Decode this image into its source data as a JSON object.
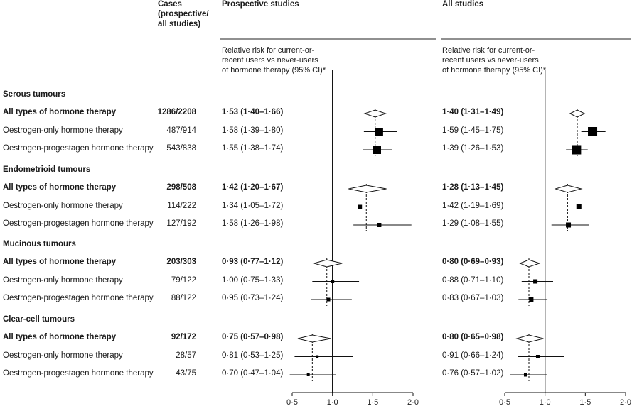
{
  "headers": {
    "cases": "Cases\n(prospective/\nall studies)",
    "prospective": "Prospective studies",
    "all": "All studies",
    "rr_label": "Relative risk for current-or-\nrecent users vs never-users\nof hormone therapy (95% CI)*"
  },
  "chart_data": {
    "type": "forest",
    "panels": [
      "Prospective studies",
      "All studies"
    ],
    "xlim": [
      0.5,
      2.0
    ],
    "ticks": [
      0.5,
      1.0,
      1.5,
      2.0
    ],
    "tick_labels": [
      "0·5",
      "1·0",
      "1·5",
      "2·0"
    ],
    "reference_line": 1.0,
    "sections": [
      {
        "title": "Serous tumours",
        "rows": [
          {
            "label": "All types of hormone therapy",
            "bold": true,
            "cases": "1286/2208",
            "prosp": {
              "text": "1·53 (1·40–1·66)",
              "rr": 1.53,
              "lo": 1.4,
              "hi": 1.66,
              "shape": "diamond"
            },
            "all": {
              "text": "1·40 (1·31–1·49)",
              "rr": 1.4,
              "lo": 1.31,
              "hi": 1.49,
              "shape": "diamond"
            }
          },
          {
            "label": "Oestrogen-only hormone therapy",
            "bold": false,
            "cases": "487/914",
            "prosp": {
              "text": "1·58 (1·39–1·80)",
              "rr": 1.58,
              "lo": 1.39,
              "hi": 1.8,
              "shape": "square",
              "size": 11
            },
            "all": {
              "text": "1·59 (1·45–1·75)",
              "rr": 1.59,
              "lo": 1.45,
              "hi": 1.75,
              "shape": "square",
              "size": 13
            }
          },
          {
            "label": "Oestrogen-progestagen hormone therapy",
            "bold": false,
            "cases": "543/838",
            "prosp": {
              "text": "1·55 (1·38–1·74)",
              "rr": 1.55,
              "lo": 1.38,
              "hi": 1.74,
              "shape": "square",
              "size": 12
            },
            "all": {
              "text": "1·39 (1·26–1·53)",
              "rr": 1.39,
              "lo": 1.26,
              "hi": 1.53,
              "shape": "square",
              "size": 13
            }
          }
        ]
      },
      {
        "title": "Endometrioid tumours",
        "rows": [
          {
            "label": "All types of hormone therapy",
            "bold": true,
            "cases": "298/508",
            "prosp": {
              "text": "1·42 (1·20–1·67)",
              "rr": 1.42,
              "lo": 1.2,
              "hi": 1.67,
              "shape": "diamond"
            },
            "all": {
              "text": "1·28 (1·13–1·45)",
              "rr": 1.28,
              "lo": 1.13,
              "hi": 1.45,
              "shape": "diamond"
            }
          },
          {
            "label": "Oestrogen-only hormone therapy",
            "bold": false,
            "cases": "114/222",
            "prosp": {
              "text": "1·34 (1·05–1·72)",
              "rr": 1.34,
              "lo": 1.05,
              "hi": 1.72,
              "shape": "square",
              "size": 6
            },
            "all": {
              "text": "1·42 (1·19–1·69)",
              "rr": 1.42,
              "lo": 1.19,
              "hi": 1.69,
              "shape": "square",
              "size": 7
            }
          },
          {
            "label": "Oestrogen-progestagen hormone therapy",
            "bold": false,
            "cases": "127/192",
            "prosp": {
              "text": "1·58 (1·26–1·98)",
              "rr": 1.58,
              "lo": 1.26,
              "hi": 1.98,
              "shape": "square",
              "size": 6
            },
            "all": {
              "text": "1·29 (1·08–1·55)",
              "rr": 1.29,
              "lo": 1.08,
              "hi": 1.55,
              "shape": "square",
              "size": 7
            }
          }
        ]
      },
      {
        "title": "Mucinous tumours",
        "rows": [
          {
            "label": "All types of hormone therapy",
            "bold": true,
            "cases": "203/303",
            "prosp": {
              "text": "0·93 (0·77–1·12)",
              "rr": 0.93,
              "lo": 0.77,
              "hi": 1.12,
              "shape": "diamond"
            },
            "all": {
              "text": "0·80 (0·69–0·93)",
              "rr": 0.8,
              "lo": 0.69,
              "hi": 0.93,
              "shape": "diamond"
            }
          },
          {
            "label": "Oestrogen-only hormone therapy",
            "bold": false,
            "cases": "79/122",
            "prosp": {
              "text": "1·00 (0·75–1·33)",
              "rr": 1.0,
              "lo": 0.75,
              "hi": 1.33,
              "shape": "square",
              "size": 5
            },
            "all": {
              "text": "0·88 (0·71–1·10)",
              "rr": 0.88,
              "lo": 0.71,
              "hi": 1.1,
              "shape": "square",
              "size": 6
            }
          },
          {
            "label": "Oestrogen-progestagen hormone therapy",
            "bold": false,
            "cases": "88/122",
            "prosp": {
              "text": "0·95 (0·73–1·24)",
              "rr": 0.95,
              "lo": 0.73,
              "hi": 1.24,
              "shape": "square",
              "size": 5
            },
            "all": {
              "text": "0·83 (0·67–1·03)",
              "rr": 0.83,
              "lo": 0.67,
              "hi": 1.03,
              "shape": "square",
              "size": 6
            }
          }
        ]
      },
      {
        "title": "Clear-cell tumours",
        "rows": [
          {
            "label": "All types of hormone therapy",
            "bold": true,
            "cases": "92/172",
            "prosp": {
              "text": "0·75 (0·57–0·98)",
              "rr": 0.75,
              "lo": 0.57,
              "hi": 0.98,
              "shape": "diamond"
            },
            "all": {
              "text": "0·80 (0·65–0·98)",
              "rr": 0.8,
              "lo": 0.65,
              "hi": 0.98,
              "shape": "diamond"
            }
          },
          {
            "label": "Oestrogen-only hormone therapy",
            "bold": false,
            "cases": "28/57",
            "prosp": {
              "text": "0·81 (0·53–1·25)",
              "rr": 0.81,
              "lo": 0.53,
              "hi": 1.25,
              "shape": "square",
              "size": 4
            },
            "all": {
              "text": "0·91 (0·66–1·24)",
              "rr": 0.91,
              "lo": 0.66,
              "hi": 1.24,
              "shape": "square",
              "size": 5
            }
          },
          {
            "label": "Oestrogen-progestagen hormone therapy",
            "bold": false,
            "cases": "43/75",
            "prosp": {
              "text": "0·70 (0·47–1·04)",
              "rr": 0.7,
              "lo": 0.47,
              "hi": 1.04,
              "shape": "square",
              "size": 4
            },
            "all": {
              "text": "0·76 (0·57–1·02)",
              "rr": 0.76,
              "lo": 0.57,
              "hi": 1.02,
              "shape": "square",
              "size": 5
            }
          }
        ]
      }
    ]
  }
}
